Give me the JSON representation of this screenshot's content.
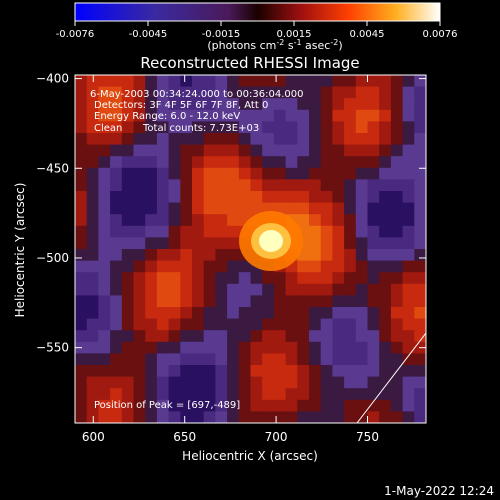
{
  "colorbar": {
    "ticks": [
      "-0.0076",
      "-0.0045",
      "-0.0015",
      "0.0015",
      "0.0045",
      "0.0076"
    ],
    "units_prefix": "(photons cm",
    "units_exp1": "-2",
    "units_mid": " s",
    "units_exp2": "-1",
    "units_mid2": " asec",
    "units_exp3": "-2",
    "units_suffix": ")"
  },
  "chart_data": {
    "type": "heatmap",
    "title": "Reconstructed RHESSI Image",
    "xlabel": "Heliocentric X (arcsec)",
    "ylabel": "Heliocentric Y (arcsec)",
    "xlim": [
      590,
      782
    ],
    "ylim": [
      -592,
      -398
    ],
    "x_ticks": [
      600,
      650,
      700,
      750
    ],
    "y_ticks": [
      -400,
      -450,
      -500,
      -550
    ],
    "x_tick_labels": [
      "600",
      "650",
      "700",
      "750"
    ],
    "y_tick_labels": [
      "−400",
      "−450",
      "−500",
      "−550"
    ],
    "color_range": [
      -0.0076,
      0.0076
    ],
    "colormap": "blue-purple-red-orange-yellow-white",
    "peak": [
      697,
      -489
    ],
    "annotations": [
      "6-May-2003 00:34:24.000 to 00:36:04.000",
      "Detectors: 3F 4F 5F 6F 7F 8F, Att 0",
      "Energy Range: 6.0 - 12.0 keV",
      "Clean",
      "Total counts: 7.73E+03"
    ],
    "peak_label": "Position of Peak = [697,-489]"
  },
  "footer": {
    "date": "1-May-2022 12:24"
  }
}
